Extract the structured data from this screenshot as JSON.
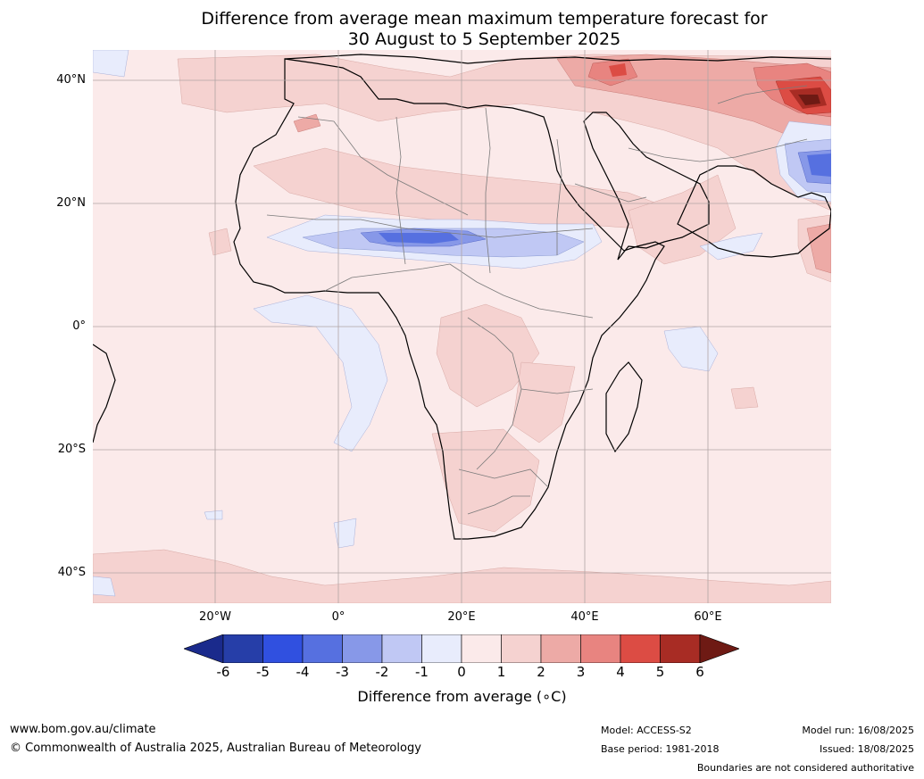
{
  "title_line1": "Difference from average mean maximum temperature forecast for",
  "title_line2": "30 August to 5 September 2025",
  "map": {
    "region": "Africa",
    "projection": "equirectangular",
    "lon_range": [
      -40,
      80
    ],
    "lat_range": [
      -45,
      45
    ],
    "lat_ticks": [
      {
        "value": 40,
        "label": "40°N"
      },
      {
        "value": 20,
        "label": "20°N"
      },
      {
        "value": 0,
        "label": "0°"
      },
      {
        "value": -20,
        "label": "20°S"
      },
      {
        "value": -40,
        "label": "40°S"
      }
    ],
    "lon_ticks": [
      {
        "value": -20,
        "label": "20°W"
      },
      {
        "value": 0,
        "label": "0°"
      },
      {
        "value": 20,
        "label": "20°E"
      },
      {
        "value": 40,
        "label": "40°E"
      },
      {
        "value": 60,
        "label": "60°E"
      }
    ],
    "gridlines": true
  },
  "colorbar": {
    "title": "Difference from average (∘C)",
    "ticks": [
      "-6",
      "-5",
      "-4",
      "-3",
      "-2",
      "-1",
      "0",
      "1",
      "2",
      "3",
      "4",
      "5",
      "6"
    ],
    "colors": [
      "#1a2a8c",
      "#263ea8",
      "#3050e0",
      "#5670e0",
      "#8798e8",
      "#c0c8f4",
      "#e8ecfc",
      "#fbeaea",
      "#f5d2d0",
      "#edaaa6",
      "#e88480",
      "#dc4c44",
      "#a82c24",
      "#6e1a14"
    ],
    "extend": "both"
  },
  "footer": {
    "website": "www.bom.gov.au/climate",
    "copyright": "© Commonwealth of Australia 2025, Australian Bureau of Meteorology",
    "model": "Model: ACCESS-S2",
    "base_period": "Base period: 1981-2018",
    "model_run": "Model run: 16/08/2025",
    "issued": "Issued: 18/08/2025",
    "disclaimer": "Boundaries are not considered authoritative"
  }
}
